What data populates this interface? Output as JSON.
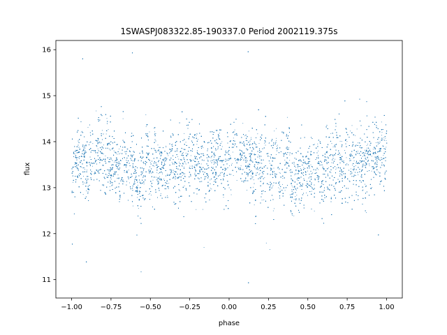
{
  "chart_data": {
    "type": "scatter",
    "title": "1SWASPJ083322.85-190337.0 Period 2002119.375s",
    "xlabel": "phase",
    "ylabel": "flux",
    "xlim": [
      -1.1,
      1.1
    ],
    "ylim": [
      10.6,
      16.2
    ],
    "xticks": [
      -1.0,
      -0.75,
      -0.5,
      -0.25,
      0.0,
      0.25,
      0.5,
      0.75,
      1.0
    ],
    "xtick_labels": [
      "−1.00",
      "−0.75",
      "−0.50",
      "−0.25",
      "0.00",
      "0.25",
      "0.50",
      "0.75",
      "1.00"
    ],
    "yticks": [
      11,
      12,
      13,
      14,
      15,
      16
    ],
    "ytick_labels": [
      "11",
      "12",
      "13",
      "14",
      "15",
      "16"
    ],
    "grid": false,
    "marker_color": "#1f77b4",
    "phase_range": [
      -1.0,
      1.0
    ],
    "flux_median": 13.5,
    "flux_core_range": [
      12.5,
      14.3
    ],
    "flux_full_range": [
      10.8,
      16.0
    ],
    "n_points_approx": 14000
  }
}
